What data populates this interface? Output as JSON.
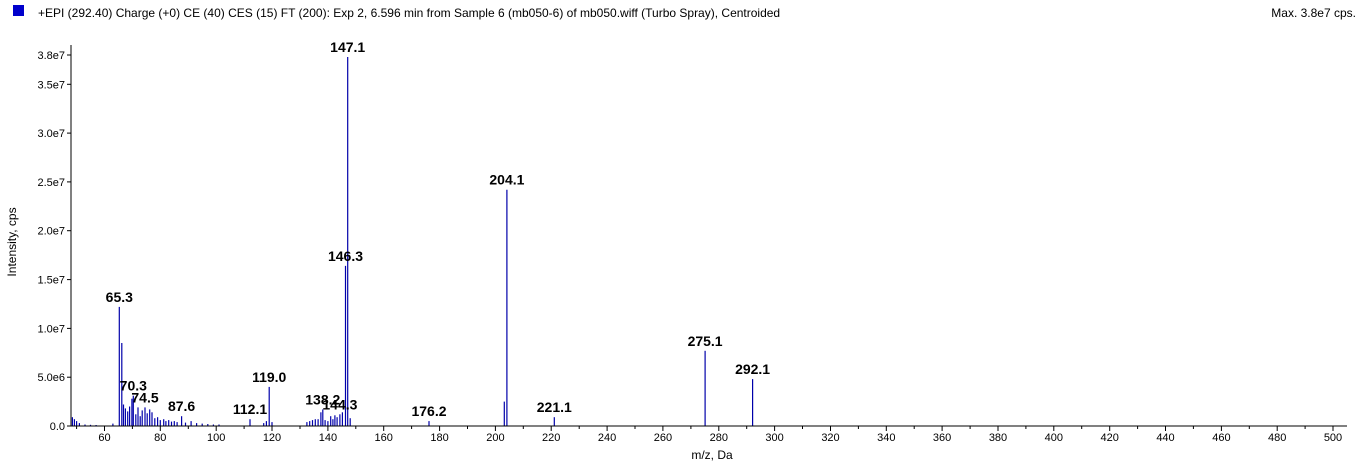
{
  "header": {
    "title": "+EPI (292.40) Charge (+0) CE (40) CES (15) FT (200): Exp 2, 6.596 min from Sample 6 (mb050-6) of mb050.wiff (Turbo Spray), Centroided",
    "max_label": "Max. 3.8e7 cps.",
    "legend_color": "#0000cc"
  },
  "chart_data": {
    "type": "bar",
    "title": "+EPI (292.40) Charge (+0) CE (40) CES (15) FT (200): Exp 2, 6.596 min from Sample 6 (mb050-6) of mb050.wiff (Turbo Spray), Centroided",
    "xlabel": "m/z, Da",
    "ylabel": "Intensity, cps",
    "xlim": [
      48,
      505
    ],
    "ylim": [
      0,
      38000000
    ],
    "grid": false,
    "legend": "top-left",
    "series_color": "#0000aa",
    "x_ticks": [
      60,
      80,
      100,
      120,
      140,
      160,
      180,
      200,
      220,
      240,
      260,
      280,
      300,
      320,
      340,
      360,
      380,
      400,
      420,
      440,
      460,
      480,
      500
    ],
    "y_ticks": [
      {
        "value": 0,
        "label": "0.0"
      },
      {
        "value": 5000000,
        "label": "5.0e6"
      },
      {
        "value": 10000000,
        "label": "1.0e7"
      },
      {
        "value": 15000000,
        "label": "1.5e7"
      },
      {
        "value": 20000000,
        "label": "2.0e7"
      },
      {
        "value": 25000000,
        "label": "2.5e7"
      },
      {
        "value": 30000000,
        "label": "3.0e7"
      },
      {
        "value": 35000000,
        "label": "3.5e7"
      },
      {
        "value": 38000000,
        "label": "3.8e7"
      }
    ],
    "peaks": [
      {
        "mz": 48.5,
        "intensity": 900000
      },
      {
        "mz": 49.2,
        "intensity": 700000
      },
      {
        "mz": 50.0,
        "intensity": 500000
      },
      {
        "mz": 51.0,
        "intensity": 300000
      },
      {
        "mz": 53.0,
        "intensity": 150000
      },
      {
        "mz": 55.0,
        "intensity": 120000
      },
      {
        "mz": 57.0,
        "intensity": 100000
      },
      {
        "mz": 63.0,
        "intensity": 250000
      },
      {
        "mz": 65.3,
        "intensity": 12200000
      },
      {
        "mz": 66.2,
        "intensity": 8500000
      },
      {
        "mz": 66.8,
        "intensity": 2200000
      },
      {
        "mz": 67.5,
        "intensity": 1800000
      },
      {
        "mz": 68.3,
        "intensity": 1500000
      },
      {
        "mz": 69.0,
        "intensity": 2000000
      },
      {
        "mz": 69.8,
        "intensity": 2800000
      },
      {
        "mz": 70.3,
        "intensity": 3100000
      },
      {
        "mz": 71.2,
        "intensity": 1200000
      },
      {
        "mz": 72.0,
        "intensity": 1900000
      },
      {
        "mz": 72.8,
        "intensity": 1000000
      },
      {
        "mz": 73.5,
        "intensity": 1600000
      },
      {
        "mz": 74.5,
        "intensity": 1900000
      },
      {
        "mz": 75.3,
        "intensity": 1300000
      },
      {
        "mz": 76.2,
        "intensity": 1700000
      },
      {
        "mz": 77.0,
        "intensity": 1400000
      },
      {
        "mz": 78.0,
        "intensity": 800000
      },
      {
        "mz": 79.0,
        "intensity": 900000
      },
      {
        "mz": 80.0,
        "intensity": 600000
      },
      {
        "mz": 81.2,
        "intensity": 700000
      },
      {
        "mz": 82.0,
        "intensity": 500000
      },
      {
        "mz": 83.0,
        "intensity": 600000
      },
      {
        "mz": 84.0,
        "intensity": 450000
      },
      {
        "mz": 85.0,
        "intensity": 500000
      },
      {
        "mz": 86.0,
        "intensity": 400000
      },
      {
        "mz": 87.6,
        "intensity": 1000000
      },
      {
        "mz": 89.0,
        "intensity": 350000
      },
      {
        "mz": 91.0,
        "intensity": 500000
      },
      {
        "mz": 93.0,
        "intensity": 300000
      },
      {
        "mz": 95.0,
        "intensity": 250000
      },
      {
        "mz": 97.0,
        "intensity": 200000
      },
      {
        "mz": 99.0,
        "intensity": 150000
      },
      {
        "mz": 101.0,
        "intensity": 150000
      },
      {
        "mz": 112.1,
        "intensity": 700000
      },
      {
        "mz": 117.0,
        "intensity": 300000
      },
      {
        "mz": 118.0,
        "intensity": 500000
      },
      {
        "mz": 119.0,
        "intensity": 4000000
      },
      {
        "mz": 120.0,
        "intensity": 400000
      },
      {
        "mz": 132.5,
        "intensity": 400000
      },
      {
        "mz": 133.5,
        "intensity": 500000
      },
      {
        "mz": 134.5,
        "intensity": 600000
      },
      {
        "mz": 135.5,
        "intensity": 700000
      },
      {
        "mz": 136.5,
        "intensity": 700000
      },
      {
        "mz": 137.5,
        "intensity": 1400000
      },
      {
        "mz": 138.2,
        "intensity": 1700000
      },
      {
        "mz": 139.0,
        "intensity": 600000
      },
      {
        "mz": 140.0,
        "intensity": 500000
      },
      {
        "mz": 141.0,
        "intensity": 1000000
      },
      {
        "mz": 141.8,
        "intensity": 700000
      },
      {
        "mz": 142.5,
        "intensity": 1100000
      },
      {
        "mz": 143.3,
        "intensity": 900000
      },
      {
        "mz": 144.3,
        "intensity": 1200000
      },
      {
        "mz": 145.2,
        "intensity": 1400000
      },
      {
        "mz": 146.3,
        "intensity": 16400000
      },
      {
        "mz": 147.1,
        "intensity": 37800000
      },
      {
        "mz": 148.0,
        "intensity": 800000
      },
      {
        "mz": 176.2,
        "intensity": 500000
      },
      {
        "mz": 203.2,
        "intensity": 2500000
      },
      {
        "mz": 204.1,
        "intensity": 24200000
      },
      {
        "mz": 221.1,
        "intensity": 900000
      },
      {
        "mz": 275.1,
        "intensity": 7700000
      },
      {
        "mz": 292.1,
        "intensity": 4800000
      }
    ],
    "annotations": [
      {
        "mz": 65.3,
        "intensity": 12200000,
        "label": "65.3"
      },
      {
        "mz": 70.3,
        "intensity": 3100000,
        "label": "70.3"
      },
      {
        "mz": 74.5,
        "intensity": 1900000,
        "label": "74.5"
      },
      {
        "mz": 87.6,
        "intensity": 1000000,
        "label": "87.6"
      },
      {
        "mz": 112.1,
        "intensity": 700000,
        "label": "112.1"
      },
      {
        "mz": 119.0,
        "intensity": 4000000,
        "label": "119.0"
      },
      {
        "mz": 138.2,
        "intensity": 1700000,
        "label": "138.2"
      },
      {
        "mz": 144.3,
        "intensity": 1200000,
        "label": "144.3"
      },
      {
        "mz": 146.3,
        "intensity": 16400000,
        "label": "146.3"
      },
      {
        "mz": 147.1,
        "intensity": 37800000,
        "label": "147.1"
      },
      {
        "mz": 176.2,
        "intensity": 500000,
        "label": "176.2"
      },
      {
        "mz": 204.1,
        "intensity": 24200000,
        "label": "204.1"
      },
      {
        "mz": 221.1,
        "intensity": 900000,
        "label": "221.1"
      },
      {
        "mz": 275.1,
        "intensity": 7700000,
        "label": "275.1"
      },
      {
        "mz": 292.1,
        "intensity": 4800000,
        "label": "292.1"
      }
    ]
  }
}
